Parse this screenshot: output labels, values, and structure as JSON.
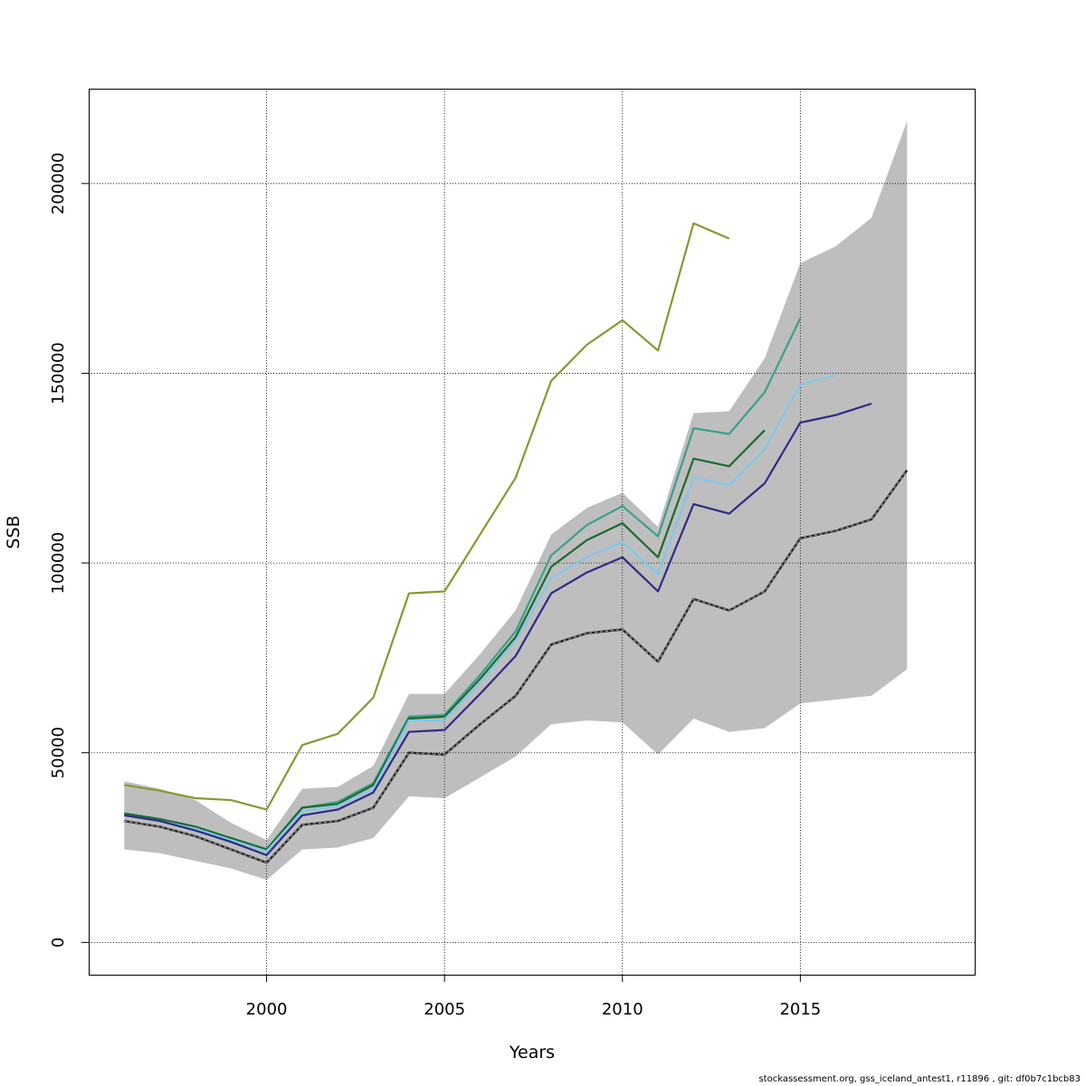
{
  "chart_data": {
    "type": "line",
    "xlabel": "Years",
    "ylabel": "SSB",
    "xlim": [
      1995,
      2019.9
    ],
    "ylim": [
      -8500,
      225000
    ],
    "x_ticks": [
      2000,
      2005,
      2010,
      2015
    ],
    "y_ticks": [
      0,
      50000,
      100000,
      150000,
      200000
    ],
    "x_tick_labels": [
      "2000",
      "2005",
      "2010",
      "2015"
    ],
    "y_tick_labels": [
      "0",
      "50000",
      "100000",
      "150000",
      "200000"
    ],
    "grid": "dotted",
    "colors": {
      "band": "#bebebe",
      "olive": "#8c9632",
      "teal": "#3c9e8e",
      "green": "#1a6b2e",
      "lightblue": "#80c8ea",
      "navy": "#2e2a88",
      "black": "#222222"
    },
    "confidence_band": {
      "x": [
        1996,
        1997,
        1998,
        1999,
        2000,
        2001,
        2002,
        2003,
        2004,
        2005,
        2006,
        2007,
        2008,
        2009,
        2010,
        2011,
        2012,
        2013,
        2014,
        2015,
        2016,
        2017,
        2018
      ],
      "upper": [
        42500,
        40500,
        37500,
        31500,
        27000,
        40500,
        41000,
        46500,
        65500,
        65500,
        76000,
        87500,
        107500,
        114500,
        118500,
        109500,
        139500,
        140000,
        154000,
        179000,
        183500,
        191000,
        216500
      ],
      "lower": [
        24500,
        23500,
        21500,
        19500,
        16500,
        24500,
        25000,
        27500,
        38500,
        38000,
        43500,
        49000,
        57500,
        58500,
        58000,
        49500,
        59000,
        55500,
        56500,
        63000,
        64000,
        65000,
        72000
      ]
    },
    "series": [
      {
        "color": "olive",
        "x": [
          1996,
          1997,
          1998,
          1999,
          2000,
          2001,
          2002,
          2003,
          2004,
          2005,
          2006,
          2007,
          2008,
          2009,
          2010,
          2011,
          2012,
          2013
        ],
        "values": [
          41500,
          40000,
          38000,
          37500,
          35000,
          52000,
          55000,
          64500,
          92000,
          92500,
          107500,
          122500,
          148000,
          157500,
          164000,
          156000,
          189500,
          185500
        ]
      },
      {
        "color": "teal",
        "x": [
          1996,
          1997,
          1998,
          1999,
          2000,
          2001,
          2002,
          2003,
          2004,
          2005,
          2006,
          2007,
          2008,
          2009,
          2010,
          2011,
          2012,
          2013,
          2014,
          2015
        ],
        "values": [
          34000,
          32500,
          30500,
          27500,
          24500,
          35500,
          37000,
          42000,
          59500,
          60000,
          70500,
          82000,
          102000,
          110000,
          115000,
          107000,
          135500,
          134000,
          145000,
          164500
        ]
      },
      {
        "color": "green",
        "x": [
          1996,
          1997,
          1998,
          1999,
          2000,
          2001,
          2002,
          2003,
          2004,
          2005,
          2006,
          2007,
          2008,
          2009,
          2010,
          2011,
          2012,
          2013,
          2014
        ],
        "values": [
          34000,
          32500,
          30500,
          27500,
          24500,
          35500,
          36500,
          41500,
          59000,
          59500,
          69500,
          80500,
          99000,
          106000,
          110500,
          101500,
          127500,
          125500,
          135000
        ]
      },
      {
        "color": "lightblue",
        "x": [
          1996,
          1997,
          1998,
          1999,
          2000,
          2001,
          2002,
          2003,
          2004,
          2005,
          2006,
          2007,
          2008,
          2009,
          2010,
          2011,
          2012,
          2013,
          2014,
          2015,
          2016
        ],
        "values": [
          33500,
          32000,
          30000,
          27000,
          24000,
          34500,
          36000,
          40500,
          58500,
          58500,
          68500,
          79500,
          96000,
          101500,
          105500,
          97000,
          122500,
          120500,
          130000,
          147000,
          149500
        ]
      },
      {
        "color": "navy",
        "x": [
          1996,
          1997,
          1998,
          1999,
          2000,
          2001,
          2002,
          2003,
          2004,
          2005,
          2006,
          2007,
          2008,
          2009,
          2010,
          2011,
          2012,
          2013,
          2014,
          2015,
          2016,
          2017
        ],
        "values": [
          33500,
          32000,
          29500,
          26500,
          23000,
          33500,
          35000,
          39500,
          55500,
          56000,
          65500,
          75500,
          92000,
          97500,
          101500,
          92500,
          115500,
          113000,
          121000,
          137000,
          139000,
          142000
        ]
      },
      {
        "color": "black",
        "dashed": true,
        "x": [
          1996,
          1997,
          1998,
          1999,
          2000,
          2001,
          2002,
          2003,
          2004,
          2005,
          2006,
          2007,
          2008,
          2009,
          2010,
          2011,
          2012,
          2013,
          2014,
          2015,
          2016,
          2017,
          2018
        ],
        "values": [
          32000,
          30500,
          28000,
          24500,
          21000,
          31000,
          32000,
          35500,
          50000,
          49500,
          57500,
          65000,
          78500,
          81500,
          82500,
          74000,
          90500,
          87500,
          92500,
          106500,
          108500,
          111500,
          124500
        ]
      }
    ]
  },
  "footer": "stockassessment.org, gss_iceland_antest1, r11896 , git: df0b7c1bcb83"
}
